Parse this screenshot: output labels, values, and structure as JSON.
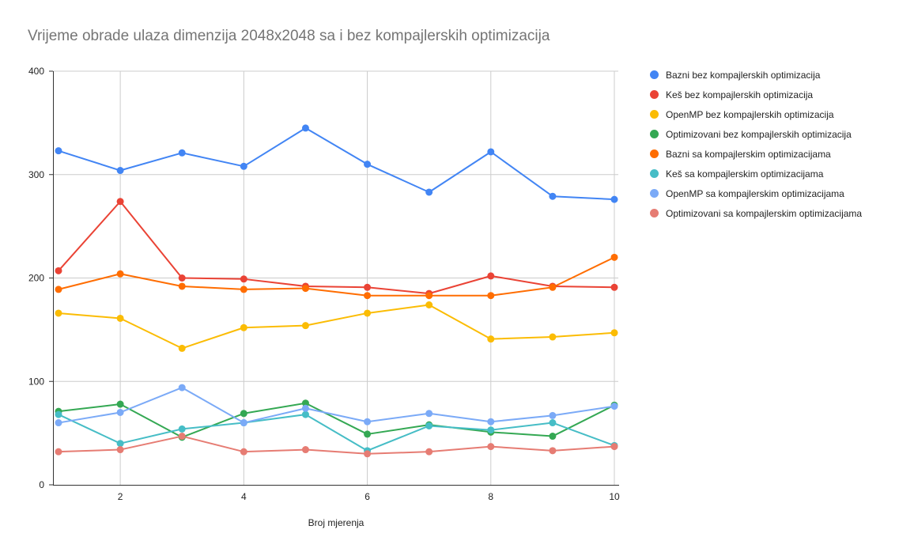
{
  "chart_data": {
    "type": "line",
    "title": "Vrijeme obrade ulaza dimenzija 2048x2048 sa i bez kompajlerskih optimizacija",
    "xlabel": "Broj mjerenja",
    "ylabel": "",
    "xlim": [
      1,
      10
    ],
    "ylim": [
      0,
      400
    ],
    "x": [
      1,
      2,
      3,
      4,
      5,
      6,
      7,
      8,
      9,
      10
    ],
    "xticks": [
      2,
      4,
      6,
      8,
      10
    ],
    "yticks": [
      0,
      100,
      200,
      300,
      400
    ],
    "grid": true,
    "legend_position": "right",
    "series": [
      {
        "name": "Bazni bez kompajlerskih optimizacija",
        "color": "#4285f4",
        "values": [
          323,
          304,
          321,
          308,
          345,
          310,
          283,
          322,
          279,
          276
        ]
      },
      {
        "name": "Keš bez kompajlerskih optimizacija",
        "color": "#ea4335",
        "values": [
          207,
          274,
          200,
          199,
          192,
          191,
          185,
          202,
          192,
          191
        ]
      },
      {
        "name": "OpenMP bez kompajlerskih optimizacija",
        "color": "#fbbc04",
        "values": [
          166,
          161,
          132,
          152,
          154,
          166,
          174,
          141,
          143,
          147
        ]
      },
      {
        "name": "Optimizovani bez kompajlerskih optimizacija",
        "color": "#34a853",
        "values": [
          71,
          78,
          46,
          69,
          79,
          49,
          58,
          51,
          47,
          77
        ]
      },
      {
        "name": "Bazni sa kompajlerskim optimizacijama",
        "color": "#ff6d01",
        "values": [
          189,
          204,
          192,
          189,
          190,
          183,
          183,
          183,
          191,
          220
        ]
      },
      {
        "name": "Keš sa kompajlerskim optimizacijama",
        "color": "#46bdc6",
        "values": [
          68,
          40,
          54,
          60,
          68,
          33,
          57,
          53,
          60,
          38
        ]
      },
      {
        "name": "OpenMP sa kompajlerskim optimizacijama",
        "color": "#7baaf7",
        "values": [
          60,
          70,
          94,
          60,
          74,
          61,
          69,
          61,
          67,
          76
        ]
      },
      {
        "name": "Optimizovani sa kompajlerskim optimizacijama",
        "color": "#e67c73",
        "values": [
          32,
          34,
          47,
          32,
          34,
          30,
          32,
          37,
          33,
          37
        ]
      }
    ]
  }
}
